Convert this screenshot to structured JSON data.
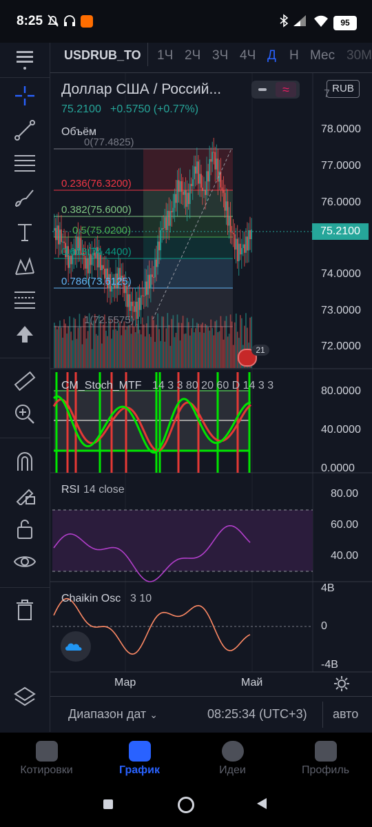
{
  "status_bar": {
    "time": "8:25",
    "battery": "95"
  },
  "toolbar_icons": [
    "menu-icon",
    "crosshair-icon",
    "trend-line-icon",
    "fib-retracement-icon",
    "brush-icon",
    "text-icon",
    "pattern-icon",
    "long-position-icon",
    "arrow-up-icon",
    "ruler-icon",
    "zoom-in-icon",
    "magnet-icon",
    "lock-drawing-icon",
    "unlock-icon",
    "eye-icon",
    "trash-icon",
    "layers-icon"
  ],
  "header": {
    "symbol": "USDRUB_TO",
    "timeframes": [
      "1Ч",
      "2Ч",
      "3Ч",
      "4Ч",
      "Д",
      "Н",
      "Мес",
      "30М"
    ],
    "active_timeframe": "Д"
  },
  "main": {
    "title": "Доллар США / Россий...",
    "price": "75.2100",
    "change": "+0.5750 (+0.77%)",
    "volume_label": "Объём",
    "currency": "RUB",
    "current_price_tag": "75.2100",
    "event_badge": "21",
    "price_axis": [
      "78.0000",
      "77.0000",
      "76.0000",
      "75.0000",
      "74.0000",
      "73.0000",
      "72.0000"
    ],
    "fib_levels": [
      {
        "label": "0(77.4825)",
        "color": "#787b86"
      },
      {
        "label": "0.236(76.3200)",
        "color": "#f23645"
      },
      {
        "label": "0.382(75.6000)",
        "color": "#81c784"
      },
      {
        "label": "0.5(75.0200)",
        "color": "#4caf50"
      },
      {
        "label": "0.618(74.4400)",
        "color": "#089981"
      },
      {
        "label": "0.786(73.6125)",
        "color": "#64b5f6"
      },
      {
        "label": "1(72.5575)",
        "color": "#787b86"
      }
    ]
  },
  "stoch": {
    "name": "CM_Stoch_MTF",
    "params": "14 3 3 80 20 60 D 14 3 3",
    "axis": [
      "80.0000",
      "40.0000",
      "0.0000"
    ]
  },
  "rsi": {
    "name": "RSI",
    "params": "14 close",
    "axis": [
      "80.00",
      "60.00",
      "40.00"
    ]
  },
  "chaikin": {
    "name": "Chaikin Osc",
    "params": "3 10",
    "axis": [
      "4B",
      "0",
      "-4B"
    ]
  },
  "time_axis": [
    "Мар",
    "Май"
  ],
  "footer": {
    "date_range": "Диапазон дат",
    "clock": "08:25:34 (UTC+3)",
    "auto": "авто"
  },
  "bottom_nav": [
    {
      "label": "Котировки",
      "active": false
    },
    {
      "label": "График",
      "active": true
    },
    {
      "label": "Идеи",
      "active": false
    },
    {
      "label": "Профиль",
      "active": false
    }
  ],
  "colors": {
    "up": "#26a69a",
    "down": "#ef5350",
    "accent": "#2962ff",
    "stoch_k": "#00e600",
    "stoch_d": "#e53935",
    "rsi": "#b33fcc",
    "chaikin": "#ff8a65"
  }
}
